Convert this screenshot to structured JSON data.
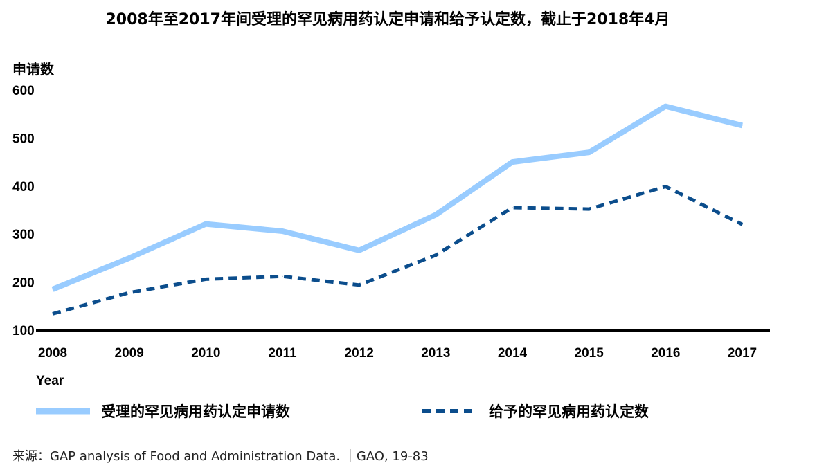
{
  "chart_data": {
    "type": "line",
    "title": "2008年至2017年间受理的罕见病用药认定申请和给予认定数，截止于2018年4月",
    "ylabel": "申请数",
    "xlabel": "Year",
    "ylim": [
      100,
      600
    ],
    "yticks": [
      "100",
      "200",
      "300",
      "400",
      "500",
      "600"
    ],
    "categories": [
      "2008",
      "2009",
      "2010",
      "2011",
      "2012",
      "2013",
      "2014",
      "2015",
      "2016",
      "2017"
    ],
    "series": [
      {
        "name": "受理的罕见病用药认定申请数",
        "values": [
          185,
          250,
          321,
          306,
          266,
          340,
          450,
          470,
          566,
          526
        ],
        "color": "#99ccff",
        "style": "solid"
      },
      {
        "name": "给予的罕见病用药认定数",
        "values": [
          134,
          178,
          206,
          212,
          194,
          256,
          355,
          352,
          399,
          320
        ],
        "color": "#0b4d8c",
        "style": "dashed"
      }
    ],
    "legend_position": "bottom",
    "grid": false
  },
  "source": "来源：GAP analysis of Food and Administration Data. ｜GAO, 19-83"
}
